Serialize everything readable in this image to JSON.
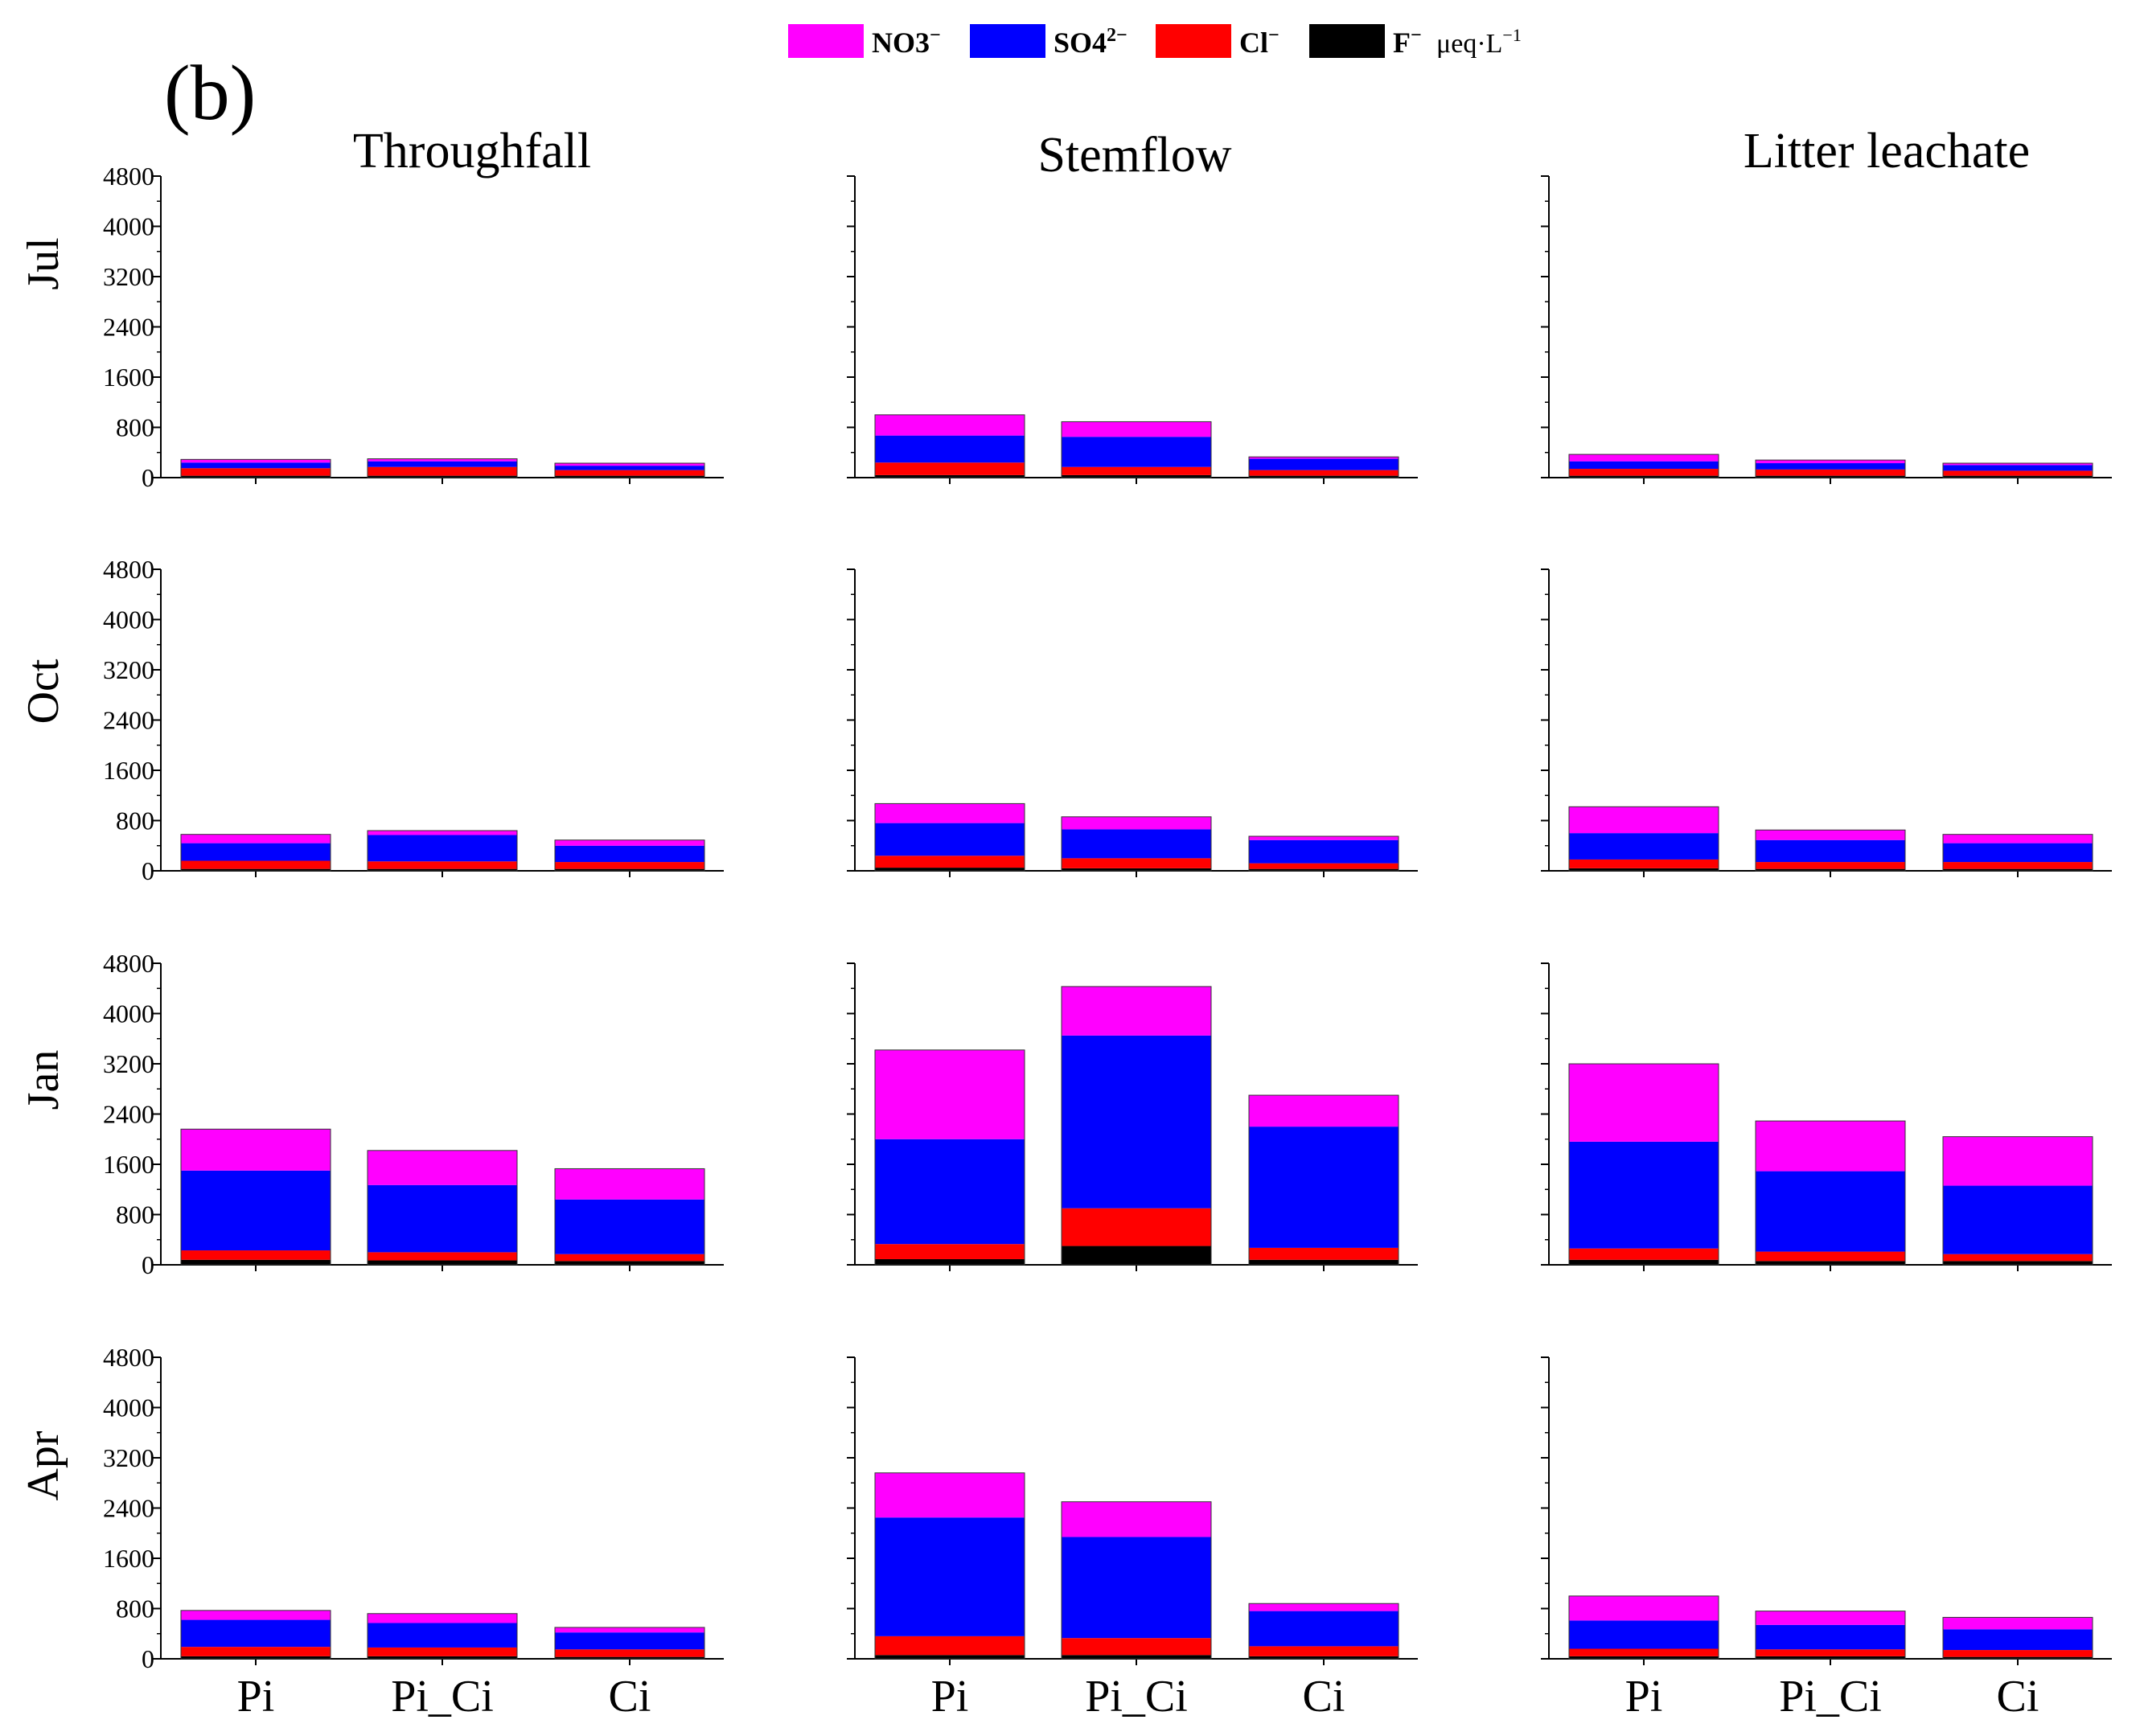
{
  "panel_label": "(b)",
  "legend": [
    {
      "label": "NO3",
      "sup": "−",
      "color": "#FF00FF"
    },
    {
      "label": "SO4",
      "sup": "2−",
      "color": "#0000FF"
    },
    {
      "label": "Cl",
      "sup": "−",
      "color": "#FF0000"
    },
    {
      "label": "F",
      "sup": "−",
      "color": "#000000"
    }
  ],
  "units": "μeq·L",
  "units_sup": "−1",
  "colors": {
    "NO3": "#FF00FF",
    "SO4": "#0000FF",
    "Cl": "#FF0000",
    "F": "#000000"
  },
  "chart_data": {
    "type": "bar",
    "stacked": true,
    "columns": [
      "Throughfall",
      "Stemflow",
      "Litter leachate"
    ],
    "rows": [
      "Jul",
      "Oct",
      "Jan",
      "Apr"
    ],
    "categories": [
      "Pi",
      "Pi_Ci",
      "Ci"
    ],
    "stack_order": [
      "F",
      "Cl",
      "SO4",
      "NO3"
    ],
    "ylim": [
      0,
      4800
    ],
    "yticks": [
      0,
      800,
      1600,
      2400,
      3200,
      4000,
      4800
    ],
    "panels": [
      {
        "row": "Jul",
        "column": "Throughfall",
        "bars": [
          {
            "category": "Pi",
            "F": 30,
            "Cl": 120,
            "SO4": 90,
            "NO3": 50
          },
          {
            "category": "Pi_Ci",
            "F": 30,
            "Cl": 140,
            "SO4": 90,
            "NO3": 40
          },
          {
            "category": "Ci",
            "F": 30,
            "Cl": 90,
            "SO4": 70,
            "NO3": 40
          }
        ]
      },
      {
        "row": "Jul",
        "column": "Stemflow",
        "bars": [
          {
            "category": "Pi",
            "F": 40,
            "Cl": 200,
            "SO4": 430,
            "NO3": 330
          },
          {
            "category": "Pi_Ci",
            "F": 40,
            "Cl": 130,
            "SO4": 480,
            "NO3": 240
          },
          {
            "category": "Ci",
            "F": 30,
            "Cl": 90,
            "SO4": 180,
            "NO3": 30
          }
        ]
      },
      {
        "row": "Jul",
        "column": "Litter leachate",
        "bars": [
          {
            "category": "Pi",
            "F": 30,
            "Cl": 110,
            "SO4": 120,
            "NO3": 110
          },
          {
            "category": "Pi_Ci",
            "F": 30,
            "Cl": 100,
            "SO4": 100,
            "NO3": 50
          },
          {
            "category": "Ci",
            "F": 30,
            "Cl": 80,
            "SO4": 90,
            "NO3": 30
          }
        ]
      },
      {
        "row": "Oct",
        "column": "Throughfall",
        "bars": [
          {
            "category": "Pi",
            "F": 30,
            "Cl": 130,
            "SO4": 280,
            "NO3": 140
          },
          {
            "category": "Pi_Ci",
            "F": 30,
            "Cl": 120,
            "SO4": 420,
            "NO3": 70
          },
          {
            "category": "Ci",
            "F": 30,
            "Cl": 110,
            "SO4": 260,
            "NO3": 90
          }
        ]
      },
      {
        "row": "Oct",
        "column": "Stemflow",
        "bars": [
          {
            "category": "Pi",
            "F": 50,
            "Cl": 190,
            "SO4": 520,
            "NO3": 310
          },
          {
            "category": "Pi_Ci",
            "F": 40,
            "Cl": 160,
            "SO4": 460,
            "NO3": 200
          },
          {
            "category": "Ci",
            "F": 30,
            "Cl": 90,
            "SO4": 370,
            "NO3": 60
          }
        ]
      },
      {
        "row": "Oct",
        "column": "Litter leachate",
        "bars": [
          {
            "category": "Pi",
            "F": 40,
            "Cl": 140,
            "SO4": 420,
            "NO3": 420
          },
          {
            "category": "Pi_Ci",
            "F": 30,
            "Cl": 110,
            "SO4": 350,
            "NO3": 160
          },
          {
            "category": "Ci",
            "F": 30,
            "Cl": 110,
            "SO4": 300,
            "NO3": 140
          }
        ]
      },
      {
        "row": "Jan",
        "column": "Throughfall",
        "bars": [
          {
            "category": "Pi",
            "F": 80,
            "Cl": 150,
            "SO4": 1270,
            "NO3": 660
          },
          {
            "category": "Pi_Ci",
            "F": 70,
            "Cl": 130,
            "SO4": 1070,
            "NO3": 550
          },
          {
            "category": "Ci",
            "F": 60,
            "Cl": 110,
            "SO4": 870,
            "NO3": 490
          }
        ]
      },
      {
        "row": "Jan",
        "column": "Stemflow",
        "bars": [
          {
            "category": "Pi",
            "F": 90,
            "Cl": 240,
            "SO4": 1670,
            "NO3": 1420
          },
          {
            "category": "Pi_Ci",
            "F": 300,
            "Cl": 600,
            "SO4": 2750,
            "NO3": 780
          },
          {
            "category": "Ci",
            "F": 80,
            "Cl": 190,
            "SO4": 1930,
            "NO3": 500
          }
        ]
      },
      {
        "row": "Jan",
        "column": "Litter leachate",
        "bars": [
          {
            "category": "Pi",
            "F": 80,
            "Cl": 180,
            "SO4": 1700,
            "NO3": 1240
          },
          {
            "category": "Pi_Ci",
            "F": 60,
            "Cl": 150,
            "SO4": 1280,
            "NO3": 800
          },
          {
            "category": "Ci",
            "F": 60,
            "Cl": 110,
            "SO4": 1090,
            "NO3": 780
          }
        ]
      },
      {
        "row": "Apr",
        "column": "Throughfall",
        "bars": [
          {
            "category": "Pi",
            "F": 40,
            "Cl": 150,
            "SO4": 430,
            "NO3": 150
          },
          {
            "category": "Pi_Ci",
            "F": 40,
            "Cl": 140,
            "SO4": 390,
            "NO3": 150
          },
          {
            "category": "Ci",
            "F": 30,
            "Cl": 120,
            "SO4": 270,
            "NO3": 80
          }
        ]
      },
      {
        "row": "Apr",
        "column": "Stemflow",
        "bars": [
          {
            "category": "Pi",
            "F": 60,
            "Cl": 300,
            "SO4": 1890,
            "NO3": 710
          },
          {
            "category": "Pi_Ci",
            "F": 60,
            "Cl": 270,
            "SO4": 1610,
            "NO3": 560
          },
          {
            "category": "Ci",
            "F": 40,
            "Cl": 160,
            "SO4": 560,
            "NO3": 120
          }
        ]
      },
      {
        "row": "Apr",
        "column": "Litter leachate",
        "bars": [
          {
            "category": "Pi",
            "F": 40,
            "Cl": 120,
            "SO4": 450,
            "NO3": 390
          },
          {
            "category": "Pi_Ci",
            "F": 40,
            "Cl": 110,
            "SO4": 390,
            "NO3": 220
          },
          {
            "category": "Ci",
            "F": 30,
            "Cl": 110,
            "SO4": 330,
            "NO3": 190
          }
        ]
      }
    ]
  }
}
